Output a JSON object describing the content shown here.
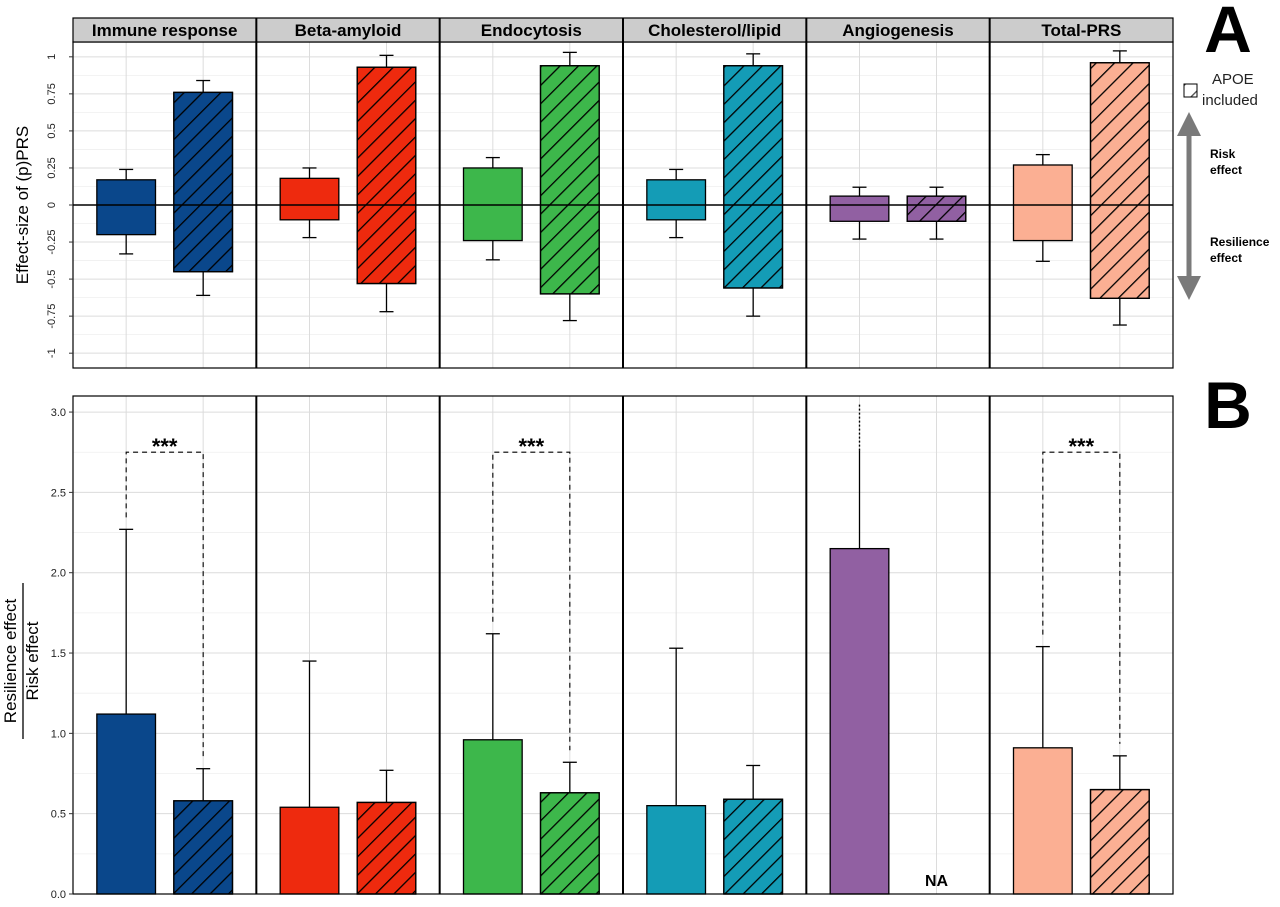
{
  "chart_data": [
    {
      "panel": "A",
      "type": "bar",
      "ylabel": "Effect-size of (p)PRS",
      "ylim": [
        -1.1,
        1.1
      ],
      "yticks": [
        -1,
        -0.75,
        -0.5,
        -0.25,
        0,
        0.25,
        0.5,
        0.75,
        1
      ],
      "ytick_labels": [
        "-1",
        "-0.75",
        "-0.5",
        "-0.25",
        "0",
        "0.25",
        "0.5",
        "0.75",
        "1"
      ],
      "grid": true,
      "legend": {
        "position": "right",
        "label": "APOE included"
      },
      "facets": [
        {
          "label": "Immune response",
          "color": "#0A478B",
          "bars": [
            {
              "apoe": false,
              "low": -0.2,
              "high": 0.17,
              "err_low": -0.33,
              "err_high": 0.24
            },
            {
              "apoe": true,
              "low": -0.45,
              "high": 0.76,
              "err_low": -0.61,
              "err_high": 0.84
            }
          ]
        },
        {
          "label": "Beta-amyloid",
          "color": "#EE2A0E",
          "bars": [
            {
              "apoe": false,
              "low": -0.1,
              "high": 0.18,
              "err_low": -0.22,
              "err_high": 0.25
            },
            {
              "apoe": true,
              "low": -0.53,
              "high": 0.93,
              "err_low": -0.72,
              "err_high": 1.01
            }
          ]
        },
        {
          "label": "Endocytosis",
          "color": "#3DB74B",
          "bars": [
            {
              "apoe": false,
              "low": -0.24,
              "high": 0.25,
              "err_low": -0.37,
              "err_high": 0.32
            },
            {
              "apoe": true,
              "low": -0.6,
              "high": 0.94,
              "err_low": -0.78,
              "err_high": 1.03
            }
          ]
        },
        {
          "label": "Cholesterol/lipid",
          "color": "#149CB6",
          "bars": [
            {
              "apoe": false,
              "low": -0.1,
              "high": 0.17,
              "err_low": -0.22,
              "err_high": 0.24
            },
            {
              "apoe": true,
              "low": -0.56,
              "high": 0.94,
              "err_low": -0.75,
              "err_high": 1.02
            }
          ]
        },
        {
          "label": "Angiogenesis",
          "color": "#9160A2",
          "bars": [
            {
              "apoe": false,
              "low": -0.11,
              "high": 0.06,
              "err_low": -0.23,
              "err_high": 0.12
            },
            {
              "apoe": true,
              "low": -0.11,
              "high": 0.06,
              "err_low": -0.23,
              "err_high": 0.12
            }
          ]
        },
        {
          "label": "Total-PRS",
          "color": "#FBAF93",
          "bars": [
            {
              "apoe": false,
              "low": -0.24,
              "high": 0.27,
              "err_low": -0.38,
              "err_high": 0.34
            },
            {
              "apoe": true,
              "low": -0.63,
              "high": 0.96,
              "err_low": -0.81,
              "err_high": 1.04
            }
          ]
        }
      ],
      "annotation": {
        "top": "Risk\neffect",
        "bottom": "Resilience\neffect"
      }
    },
    {
      "panel": "B",
      "type": "bar",
      "ylabel_numerator": "Resilience effect",
      "ylabel_denominator": "Risk effect",
      "ylim": [
        0,
        3.1
      ],
      "yticks": [
        0,
        0.5,
        1,
        1.5,
        2,
        2.5,
        3
      ],
      "ytick_labels": [
        "0.0",
        "0.5",
        "1.0",
        "1.5",
        "2.0",
        "2.5",
        "3.0"
      ],
      "grid": true,
      "facets": [
        {
          "label": "Immune response",
          "color": "#0A478B",
          "bars": [
            {
              "apoe": false,
              "value": 1.12,
              "err_high": 2.27
            },
            {
              "apoe": true,
              "value": 0.58,
              "err_high": 0.78
            }
          ],
          "significance": "***"
        },
        {
          "label": "Beta-amyloid",
          "color": "#EE2A0E",
          "bars": [
            {
              "apoe": false,
              "value": 0.54,
              "err_high": 1.45
            },
            {
              "apoe": true,
              "value": 0.57,
              "err_high": 0.77
            }
          ],
          "significance": ""
        },
        {
          "label": "Endocytosis",
          "color": "#3DB74B",
          "bars": [
            {
              "apoe": false,
              "value": 0.96,
              "err_high": 1.62
            },
            {
              "apoe": true,
              "value": 0.63,
              "err_high": 0.82
            }
          ],
          "significance": "***"
        },
        {
          "label": "Cholesterol/lipid",
          "color": "#149CB6",
          "bars": [
            {
              "apoe": false,
              "value": 0.55,
              "err_high": 1.53
            },
            {
              "apoe": true,
              "value": 0.59,
              "err_high": 0.8
            }
          ],
          "significance": ""
        },
        {
          "label": "Angiogenesis",
          "color": "#9160A2",
          "bars": [
            {
              "apoe": false,
              "value": 2.15,
              "err_high": 2.76,
              "err_beyond": 3.05
            },
            {
              "apoe": true,
              "value": null,
              "na_label": "NA"
            }
          ],
          "significance": ""
        },
        {
          "label": "Total-PRS",
          "color": "#FBAF93",
          "bars": [
            {
              "apoe": false,
              "value": 0.91,
              "err_high": 1.54
            },
            {
              "apoe": true,
              "value": 0.65,
              "err_high": 0.86
            }
          ],
          "significance": "***"
        }
      ]
    }
  ],
  "panel_letters": [
    "A",
    "B"
  ],
  "colors": {
    "strip_bg": "#CCCCCC",
    "grid_major": "#DCDCDC",
    "grid_minor": "#EFEFEF",
    "arrow": "#7A7A7A"
  }
}
